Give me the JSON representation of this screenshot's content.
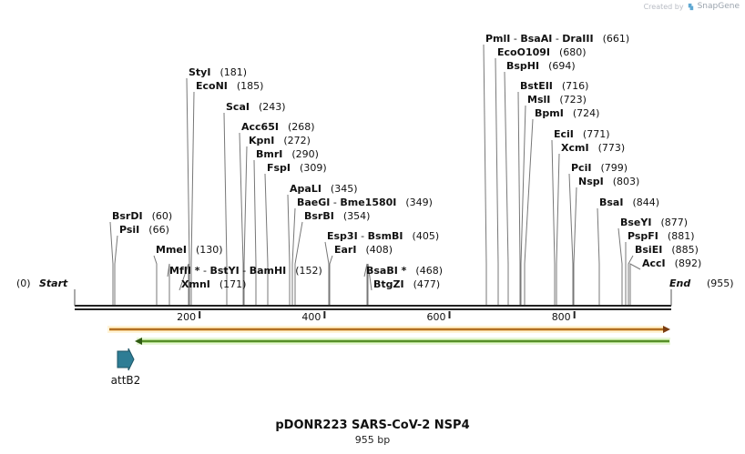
{
  "credit": {
    "prefix": "Created by",
    "brand": "SnapGene"
  },
  "map": {
    "title": "pDONR223 SARS-CoV-2 NSP4",
    "length_label": "955 bp",
    "start": {
      "label": "Start",
      "pos": "(0)"
    },
    "end": {
      "label": "End",
      "pos": "(955)"
    },
    "ticks": [
      "200",
      "400",
      "600",
      "800"
    ],
    "feature_label": "attB2",
    "sites": [
      {
        "names": [
          "BsrDI"
        ],
        "pos": "(60)"
      },
      {
        "names": [
          "PsiI"
        ],
        "pos": "(66)"
      },
      {
        "names": [
          "MmeI"
        ],
        "pos": "(130)"
      },
      {
        "names": [
          "MfII *",
          "BstYI",
          "BamHI"
        ],
        "pos": "(152)"
      },
      {
        "names": [
          "XmnI"
        ],
        "pos": "(171)"
      },
      {
        "names": [
          "StyI"
        ],
        "pos": "(181)"
      },
      {
        "names": [
          "EcoNI"
        ],
        "pos": "(185)"
      },
      {
        "names": [
          "ScaI"
        ],
        "pos": "(243)"
      },
      {
        "names": [
          "Acc65I"
        ],
        "pos": "(268)"
      },
      {
        "names": [
          "KpnI"
        ],
        "pos": "(272)"
      },
      {
        "names": [
          "BmrI"
        ],
        "pos": "(290)"
      },
      {
        "names": [
          "FspI"
        ],
        "pos": "(309)"
      },
      {
        "names": [
          "ApaLI"
        ],
        "pos": "(345)"
      },
      {
        "names": [
          "BaeGI",
          "Bme1580I"
        ],
        "pos": "(349)"
      },
      {
        "names": [
          "BsrBI"
        ],
        "pos": "(354)"
      },
      {
        "names": [
          "Esp3I",
          "BsmBI"
        ],
        "pos": "(405)"
      },
      {
        "names": [
          "EarI"
        ],
        "pos": "(408)"
      },
      {
        "names": [
          "BsaBI *"
        ],
        "pos": "(468)"
      },
      {
        "names": [
          "BtgZI"
        ],
        "pos": "(477)"
      },
      {
        "names": [
          "PmlI",
          "BsaAI",
          "DraIII"
        ],
        "pos": "(661)"
      },
      {
        "names": [
          "EcoO109I"
        ],
        "pos": "(680)"
      },
      {
        "names": [
          "BspHI"
        ],
        "pos": "(694)"
      },
      {
        "names": [
          "BstEII"
        ],
        "pos": "(716)"
      },
      {
        "names": [
          "MslI"
        ],
        "pos": "(723)"
      },
      {
        "names": [
          "BpmI"
        ],
        "pos": "(724)"
      },
      {
        "names": [
          "EciI"
        ],
        "pos": "(771)"
      },
      {
        "names": [
          "XcmI"
        ],
        "pos": "(773)"
      },
      {
        "names": [
          "PciI"
        ],
        "pos": "(799)"
      },
      {
        "names": [
          "NspI"
        ],
        "pos": "(803)"
      },
      {
        "names": [
          "BsaI"
        ],
        "pos": "(844)"
      },
      {
        "names": [
          "BseYI"
        ],
        "pos": "(877)"
      },
      {
        "names": [
          "PspFI"
        ],
        "pos": "(881)"
      },
      {
        "names": [
          "BsiEI"
        ],
        "pos": "(885)"
      },
      {
        "names": [
          "AccI"
        ],
        "pos": "(892)"
      }
    ]
  },
  "colors": {
    "backbone": "#222222",
    "orange_feature": "#e8a33c",
    "green_feature": "#7fc241",
    "attb2_arrow": "#2e7d95",
    "leader_line": "#777777"
  }
}
